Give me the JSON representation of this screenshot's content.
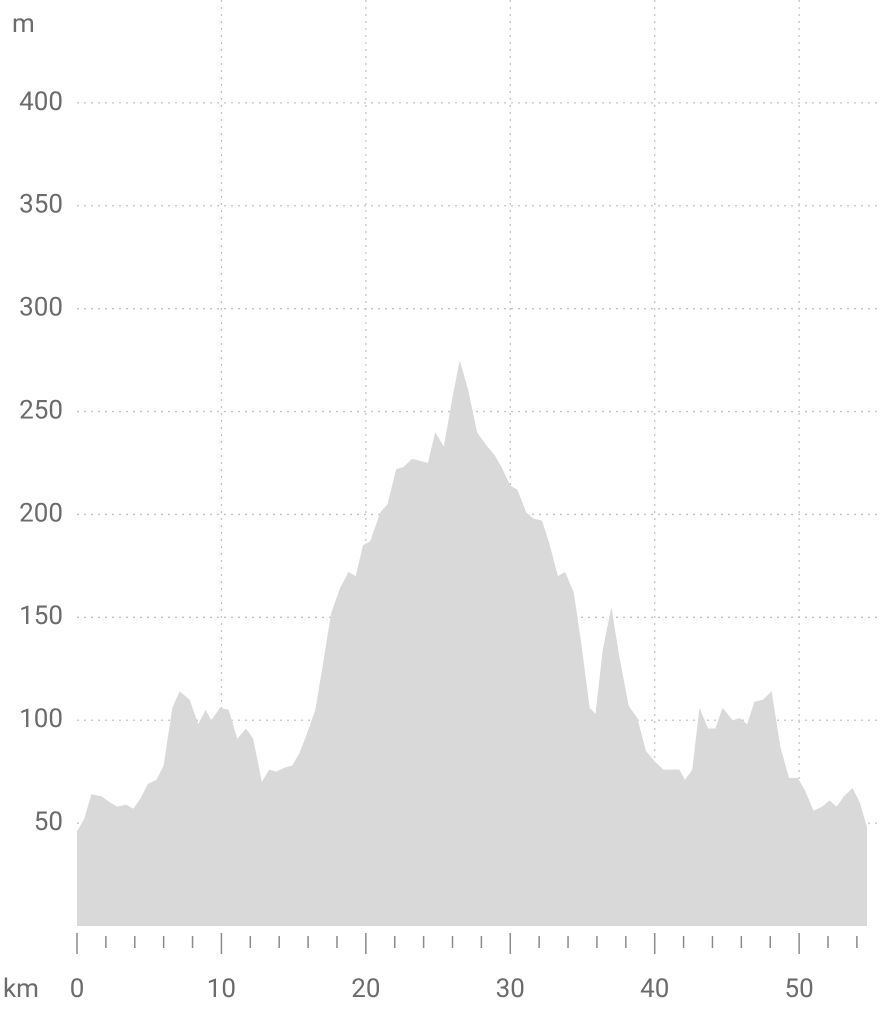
{
  "chart_data": {
    "type": "area",
    "y_unit": "m",
    "x_unit": "km",
    "x": [
      0,
      0.5,
      1.0,
      1.7,
      2.3,
      2.8,
      3.4,
      3.9,
      4.4,
      4.9,
      5.5,
      6.0,
      6.6,
      7.1,
      7.8,
      8.4,
      8.9,
      9.3,
      9.9,
      10.5,
      11.1,
      11.7,
      12.2,
      12.8,
      13.3,
      13.8,
      14.4,
      14.9,
      15.4,
      15.9,
      16.5,
      17.0,
      17.6,
      18.2,
      18.8,
      19.3,
      19.8,
      20.3,
      21.0,
      21.5,
      22.1,
      22.6,
      23.2,
      23.8,
      24.3,
      24.8,
      25.4,
      26.0,
      26.5,
      27.1,
      27.7,
      28.3,
      28.9,
      29.4,
      30.0,
      30.5,
      31.1,
      31.6,
      32.2,
      32.7,
      33.3,
      33.8,
      34.4,
      34.9,
      35.5,
      35.9,
      36.4,
      37.0,
      37.5,
      38.2,
      38.8,
      39.4,
      40.0,
      40.6,
      41.2,
      41.7,
      42.1,
      42.6,
      43.1,
      43.7,
      44.2,
      44.7,
      45.4,
      45.9,
      46.4,
      46.9,
      47.5,
      48.1,
      48.7,
      49.3,
      49.9,
      50.4,
      51.0,
      51.6,
      52.1,
      52.6,
      53.1,
      53.7,
      54.2,
      54.7
    ],
    "values": [
      46,
      52,
      64,
      63,
      60,
      58,
      59,
      57,
      62,
      69,
      71,
      78,
      106,
      114,
      110,
      98,
      105,
      100,
      106,
      105,
      91,
      96,
      91,
      70,
      76,
      75,
      77,
      78,
      84,
      93,
      105,
      126,
      152,
      164,
      172,
      170,
      185,
      187,
      201,
      205,
      222,
      223,
      227,
      226,
      225,
      240,
      233,
      257,
      275,
      260,
      240,
      234,
      229,
      223,
      214,
      212,
      201,
      198,
      197,
      186,
      170,
      172,
      162,
      138,
      106,
      103,
      134,
      155,
      133,
      107,
      101,
      85,
      80,
      76,
      76,
      76,
      71,
      76,
      106,
      96,
      96,
      106,
      100,
      101,
      98,
      109,
      110,
      114,
      87,
      72,
      72,
      66,
      56,
      58,
      61,
      58,
      63,
      67,
      60,
      48
    ],
    "color": "#d9d9d9",
    "xlim": [
      0,
      54.7
    ],
    "ylim": [
      0,
      450
    ],
    "xticks": [
      0,
      10,
      20,
      30,
      40,
      50
    ],
    "xminor_ticks": [
      0,
      2,
      4,
      6,
      8,
      10,
      12,
      14,
      16,
      18,
      20,
      22,
      24,
      26,
      28,
      30,
      32,
      34,
      36,
      38,
      40,
      42,
      44,
      46,
      48,
      50,
      52,
      54
    ],
    "yticks": [
      50,
      100,
      150,
      200,
      250,
      300,
      350,
      400
    ],
    "grid": true
  }
}
